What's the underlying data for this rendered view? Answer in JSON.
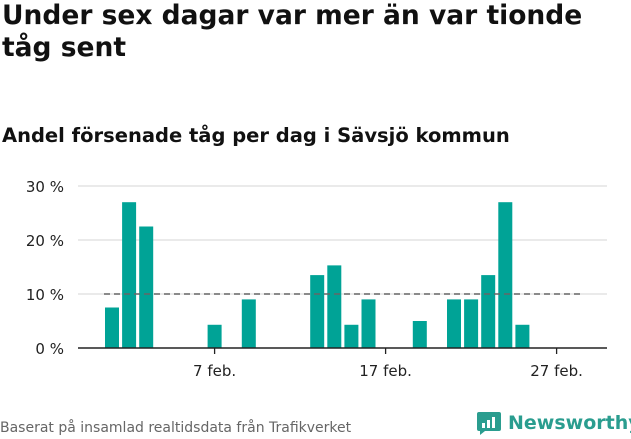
{
  "title": "Under sex dagar var mer än var tionde tåg sent",
  "subtitle": "Andel försenade tåg per dag i Sävsjö kommun",
  "source": "Baserat på insamlad realtidsdata från Trafikverket",
  "brand": {
    "name": "Newsworthy",
    "logo_icon": "newsworthy-chart-logo-icon"
  },
  "colors": {
    "bar": "#00a396",
    "grid": "#dddddd",
    "axis": "#222222",
    "reference": "#666666",
    "brand": "#2a9d8f"
  },
  "chart_data": {
    "type": "bar",
    "x_unit": "day",
    "x": [
      "1 feb.",
      "2 feb.",
      "3 feb.",
      "4 feb.",
      "5 feb.",
      "6 feb.",
      "7 feb.",
      "8 feb.",
      "9 feb.",
      "10 feb.",
      "11 feb.",
      "12 feb.",
      "13 feb.",
      "14 feb.",
      "15 feb.",
      "16 feb.",
      "17 feb.",
      "18 feb.",
      "19 feb.",
      "20 feb.",
      "21 feb.",
      "22 feb.",
      "23 feb.",
      "24 feb.",
      "25 feb.",
      "26 feb.",
      "27 feb.",
      "28 feb."
    ],
    "values": [
      7.5,
      27,
      22.5,
      0,
      0,
      0,
      4.3,
      0,
      9,
      0,
      0,
      0,
      13.5,
      15.3,
      4.3,
      9,
      0,
      0,
      5,
      0,
      9,
      9,
      13.5,
      27,
      4.3,
      0,
      0,
      0
    ],
    "x_tick_labels": [
      {
        "label": "7 feb.",
        "index": 6
      },
      {
        "label": "17 feb.",
        "index": 16
      },
      {
        "label": "27 feb.",
        "index": 26
      }
    ],
    "y_ticks": [
      {
        "value": 0,
        "label": "0 %"
      },
      {
        "value": 10,
        "label": "10 %"
      },
      {
        "value": 20,
        "label": "20 %"
      },
      {
        "value": 30,
        "label": "30 %"
      }
    ],
    "ylim": [
      0,
      30
    ],
    "reference_line": {
      "value": 10,
      "style": "dashed"
    },
    "grid": true
  }
}
